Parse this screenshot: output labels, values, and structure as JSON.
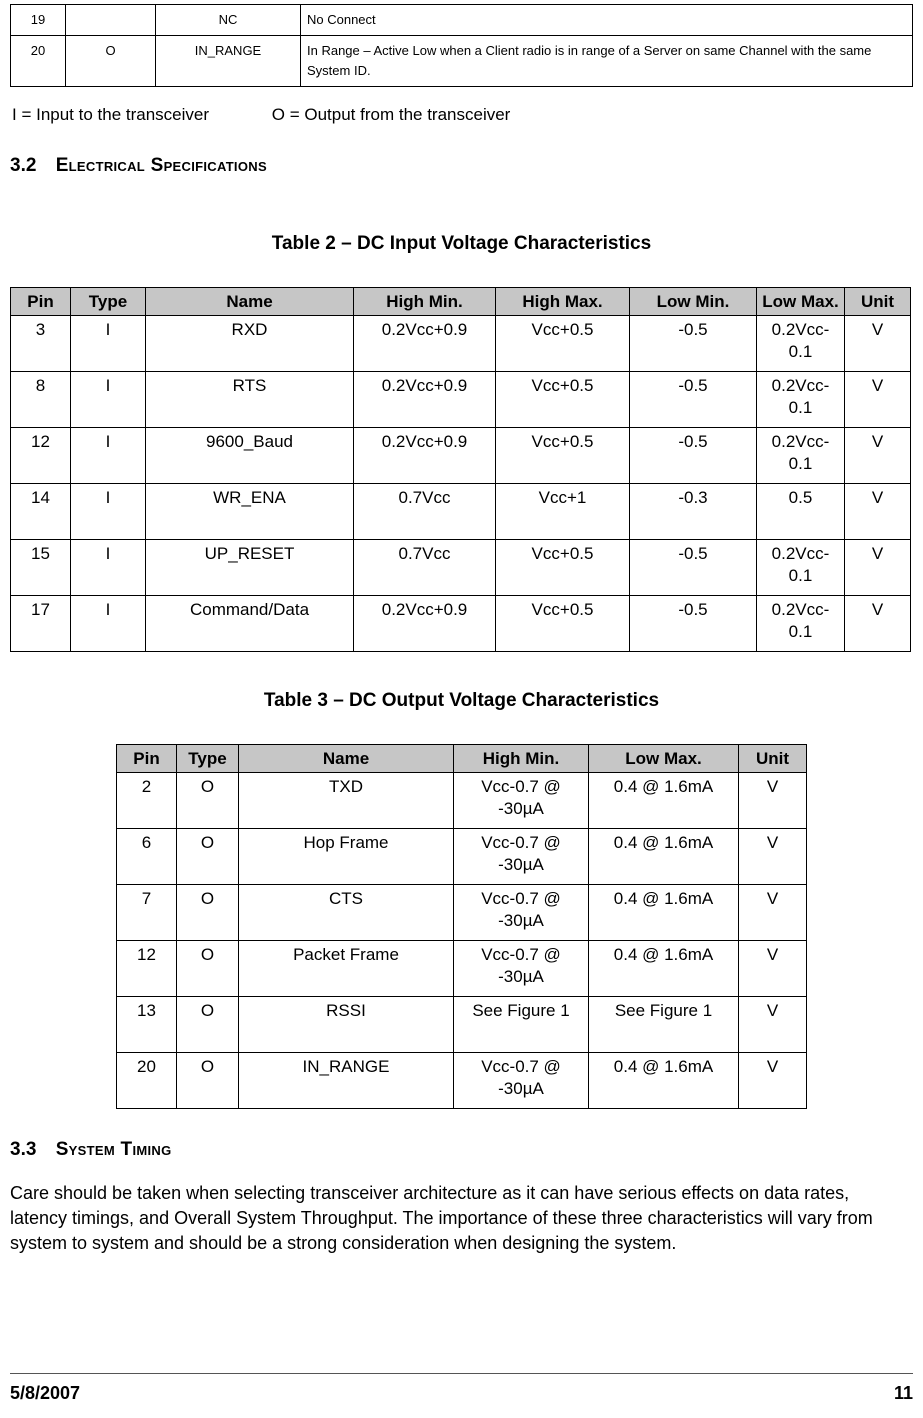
{
  "pins_table": {
    "rows": [
      [
        "19",
        "",
        "NC",
        "No Connect"
      ],
      [
        "20",
        "O",
        "IN_RANGE",
        "In Range – Active Low when a Client radio is in range of a Server on same Channel with the same System ID."
      ]
    ]
  },
  "io_note": {
    "input": "I = Input to the transceiver",
    "output": "O = Output from the transceiver"
  },
  "section_electrical": {
    "number": "3.2",
    "title": "Electrical Specifications"
  },
  "table2": {
    "title": "Table 2 – DC Input Voltage Characteristics",
    "headers": [
      "Pin",
      "Type",
      "Name",
      "High Min.",
      "High Max.",
      "Low Min.",
      "Low Max.",
      "Unit"
    ],
    "rows": [
      [
        "3",
        "I",
        "RXD",
        "0.2Vcc+0.9",
        "Vcc+0.5",
        "-0.5",
        "0.2Vcc-0.1",
        "V"
      ],
      [
        "8",
        "I",
        "RTS",
        "0.2Vcc+0.9",
        "Vcc+0.5",
        "-0.5",
        "0.2Vcc-0.1",
        "V"
      ],
      [
        "12",
        "I",
        "9600_Baud",
        "0.2Vcc+0.9",
        "Vcc+0.5",
        "-0.5",
        "0.2Vcc-0.1",
        "V"
      ],
      [
        "14",
        "I",
        "WR_ENA",
        "0.7Vcc",
        "Vcc+1",
        "-0.3",
        "0.5",
        "V"
      ],
      [
        "15",
        "I",
        "UP_RESET",
        "0.7Vcc",
        "Vcc+0.5",
        "-0.5",
        "0.2Vcc-0.1",
        "V"
      ],
      [
        "17",
        "I",
        "Command/Data",
        "0.2Vcc+0.9",
        "Vcc+0.5",
        "-0.5",
        "0.2Vcc-0.1",
        "V"
      ]
    ]
  },
  "table3": {
    "title": "Table 3 – DC Output Voltage Characteristics",
    "headers": [
      "Pin",
      "Type",
      "Name",
      "High Min.",
      "Low Max.",
      "Unit"
    ],
    "rows": [
      [
        "2",
        "O",
        "TXD",
        "Vcc-0.7 @ -30µA",
        "0.4 @ 1.6mA",
        "V"
      ],
      [
        "6",
        "O",
        "Hop Frame",
        "Vcc-0.7 @ -30µA",
        "0.4 @ 1.6mA",
        "V"
      ],
      [
        "7",
        "O",
        "CTS",
        "Vcc-0.7 @ -30µA",
        "0.4 @ 1.6mA",
        "V"
      ],
      [
        "12",
        "O",
        "Packet Frame",
        "Vcc-0.7 @ -30µA",
        "0.4 @ 1.6mA",
        "V"
      ],
      [
        "13",
        "O",
        "RSSI",
        "See Figure 1",
        "See Figure 1",
        "V"
      ],
      [
        "20",
        "O",
        "IN_RANGE",
        "Vcc-0.7 @ -30µA",
        "0.4 @ 1.6mA",
        "V"
      ]
    ]
  },
  "section_timing": {
    "number": "3.3",
    "title": "System Timing"
  },
  "paragraph": "Care should be taken when selecting transceiver architecture as it can have serious effects on data rates, latency timings, and Overall System Throughput.  The importance of these three characteristics will vary from system to system and should be a strong consideration when designing the system.",
  "footer": {
    "date": "5/8/2007",
    "page_number": "11"
  }
}
